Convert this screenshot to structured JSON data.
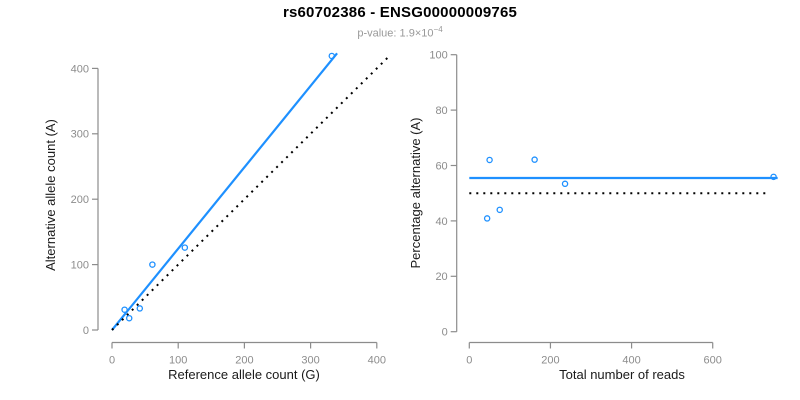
{
  "header": {
    "title": "rs60702386 - ENSG00000009765",
    "subtitle_prefix": "p-value: 1.9",
    "subtitle_times": "×",
    "subtitle_base": "10",
    "subtitle_exponent": "−4"
  },
  "colors": {
    "accent_blue": "#1e90ff",
    "reference_black": "#000000",
    "axis_gray": "#8c8c8c",
    "tick_label_gray": "#8c8c8c",
    "axis_title_color": "#1a1a1a",
    "title_color": "#000000",
    "subtitle_gray": "#999999"
  },
  "chart_data": [
    {
      "type": "scatter",
      "panel": "allele-counts",
      "xlabel": "Reference allele count (G)",
      "ylabel": "Alternative allele count (A)",
      "xlim": [
        0,
        420
      ],
      "ylim": [
        0,
        428
      ],
      "xticks": [
        0,
        100,
        200,
        300,
        400
      ],
      "yticks": [
        0,
        100,
        200,
        300,
        400
      ],
      "grid": false,
      "marker": "open-circle",
      "points": [
        {
          "x": 19,
          "y": 31
        },
        {
          "x": 26,
          "y": 18
        },
        {
          "x": 42,
          "y": 33
        },
        {
          "x": 61,
          "y": 100
        },
        {
          "x": 110,
          "y": 126
        },
        {
          "x": 332,
          "y": 419
        }
      ],
      "lines": [
        {
          "name": "fit-line",
          "description": "linear fit of alt vs ref counts",
          "style": "solid",
          "color": "#1e90ff",
          "x1": 0,
          "y1": 0,
          "x2": 340,
          "y2": 423
        },
        {
          "name": "identity-line",
          "description": "y = x reference",
          "style": "dotted",
          "color": "#000000",
          "x1": 0,
          "y1": 0,
          "x2": 416,
          "y2": 416
        }
      ]
    },
    {
      "type": "scatter",
      "panel": "percentage-vs-coverage",
      "xlabel": "Total number of reads",
      "ylabel": "Percentage alternative (A)",
      "xlim": [
        0,
        800
      ],
      "ylim": [
        0,
        100
      ],
      "xticks": [
        0,
        200,
        400,
        600
      ],
      "yticks": [
        0,
        20,
        40,
        60,
        80,
        100
      ],
      "grid": false,
      "marker": "open-circle",
      "points": [
        {
          "x": 50,
          "y": 62.0
        },
        {
          "x": 44,
          "y": 40.9
        },
        {
          "x": 75,
          "y": 44.0
        },
        {
          "x": 161,
          "y": 62.1
        },
        {
          "x": 236,
          "y": 53.4
        },
        {
          "x": 750,
          "y": 55.9
        }
      ],
      "lines": [
        {
          "name": "mean-line",
          "description": "overall mean alternative percentage",
          "style": "solid",
          "color": "#1e90ff",
          "x1": 0,
          "y1": 55.5,
          "x2": 760,
          "y2": 55.5
        },
        {
          "name": "expected-line",
          "description": "expected 50% line",
          "style": "dotted",
          "color": "#000000",
          "x1": 0,
          "y1": 50,
          "x2": 737,
          "y2": 50
        }
      ]
    }
  ]
}
